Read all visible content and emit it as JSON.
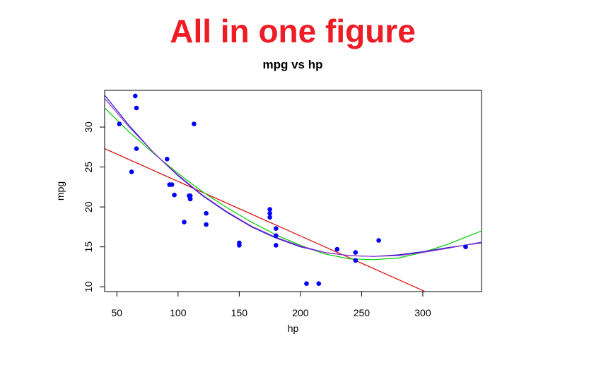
{
  "figure": {
    "title": "All in one figure"
  },
  "chart_data": {
    "type": "scatter",
    "title": "mpg vs hp",
    "xlabel": "hp",
    "ylabel": "mpg",
    "xlim": [
      40,
      348
    ],
    "ylim": [
      9.4,
      34.6
    ],
    "x_ticks": [
      50,
      100,
      150,
      200,
      250,
      300
    ],
    "y_ticks": [
      10,
      15,
      20,
      25,
      30
    ],
    "grid": false,
    "legend": "none",
    "point_color": "#0000ff",
    "points": [
      {
        "x": 110,
        "y": 21.0
      },
      {
        "x": 110,
        "y": 21.0
      },
      {
        "x": 93,
        "y": 22.8
      },
      {
        "x": 110,
        "y": 21.4
      },
      {
        "x": 175,
        "y": 18.7
      },
      {
        "x": 105,
        "y": 18.1
      },
      {
        "x": 245,
        "y": 14.3
      },
      {
        "x": 62,
        "y": 24.4
      },
      {
        "x": 95,
        "y": 22.8
      },
      {
        "x": 123,
        "y": 19.2
      },
      {
        "x": 123,
        "y": 17.8
      },
      {
        "x": 180,
        "y": 16.4
      },
      {
        "x": 180,
        "y": 17.3
      },
      {
        "x": 180,
        "y": 15.2
      },
      {
        "x": 205,
        "y": 10.4
      },
      {
        "x": 215,
        "y": 10.4
      },
      {
        "x": 230,
        "y": 14.7
      },
      {
        "x": 66,
        "y": 32.4
      },
      {
        "x": 52,
        "y": 30.4
      },
      {
        "x": 65,
        "y": 33.9
      },
      {
        "x": 97,
        "y": 21.5
      },
      {
        "x": 150,
        "y": 15.5
      },
      {
        "x": 150,
        "y": 15.2
      },
      {
        "x": 245,
        "y": 13.3
      },
      {
        "x": 175,
        "y": 19.2
      },
      {
        "x": 66,
        "y": 27.3
      },
      {
        "x": 91,
        "y": 26.0
      },
      {
        "x": 113,
        "y": 30.4
      },
      {
        "x": 264,
        "y": 15.8
      },
      {
        "x": 175,
        "y": 19.7
      },
      {
        "x": 335,
        "y": 15.0
      },
      {
        "x": 109,
        "y": 21.4
      }
    ],
    "series": [
      {
        "style": "line",
        "color": "#dd0000",
        "points": [
          {
            "x": 40,
            "y": 27.3
          },
          {
            "x": 302,
            "y": 9.4
          }
        ]
      },
      {
        "style": "line",
        "color": "#00cc00",
        "points": [
          {
            "x": 40,
            "y": 32.4
          },
          {
            "x": 60,
            "y": 29.4
          },
          {
            "x": 80,
            "y": 26.7
          },
          {
            "x": 100,
            "y": 24.2
          },
          {
            "x": 120,
            "y": 21.9
          },
          {
            "x": 140,
            "y": 19.9
          },
          {
            "x": 160,
            "y": 18.1
          },
          {
            "x": 180,
            "y": 16.5
          },
          {
            "x": 200,
            "y": 15.2
          },
          {
            "x": 220,
            "y": 14.1
          },
          {
            "x": 240,
            "y": 13.5
          },
          {
            "x": 260,
            "y": 13.4
          },
          {
            "x": 280,
            "y": 13.6
          },
          {
            "x": 300,
            "y": 14.3
          },
          {
            "x": 320,
            "y": 15.3
          },
          {
            "x": 348,
            "y": 17.0
          }
        ]
      },
      {
        "style": "line",
        "color": "#1a1acc",
        "points": [
          {
            "x": 40,
            "y": 34.0
          },
          {
            "x": 60,
            "y": 30.2
          },
          {
            "x": 80,
            "y": 26.8
          },
          {
            "x": 100,
            "y": 23.9
          },
          {
            "x": 120,
            "y": 21.4
          },
          {
            "x": 140,
            "y": 19.3
          },
          {
            "x": 160,
            "y": 17.5
          },
          {
            "x": 180,
            "y": 16.1
          },
          {
            "x": 200,
            "y": 15.0
          },
          {
            "x": 220,
            "y": 14.3
          },
          {
            "x": 240,
            "y": 13.9
          },
          {
            "x": 260,
            "y": 13.8
          },
          {
            "x": 280,
            "y": 14.0
          },
          {
            "x": 300,
            "y": 14.4
          },
          {
            "x": 320,
            "y": 14.9
          },
          {
            "x": 348,
            "y": 15.5
          }
        ]
      },
      {
        "style": "line",
        "color": "#9933cc",
        "points": [
          {
            "x": 40,
            "y": 33.6
          },
          {
            "x": 60,
            "y": 30.0
          },
          {
            "x": 80,
            "y": 26.8
          },
          {
            "x": 100,
            "y": 24.0
          },
          {
            "x": 120,
            "y": 21.5
          },
          {
            "x": 140,
            "y": 19.4
          },
          {
            "x": 160,
            "y": 17.6
          },
          {
            "x": 180,
            "y": 16.2
          },
          {
            "x": 200,
            "y": 15.1
          },
          {
            "x": 220,
            "y": 14.3
          },
          {
            "x": 240,
            "y": 13.9
          },
          {
            "x": 260,
            "y": 13.8
          },
          {
            "x": 280,
            "y": 13.9
          },
          {
            "x": 300,
            "y": 14.3
          },
          {
            "x": 320,
            "y": 14.8
          },
          {
            "x": 348,
            "y": 15.6
          }
        ]
      }
    ]
  }
}
